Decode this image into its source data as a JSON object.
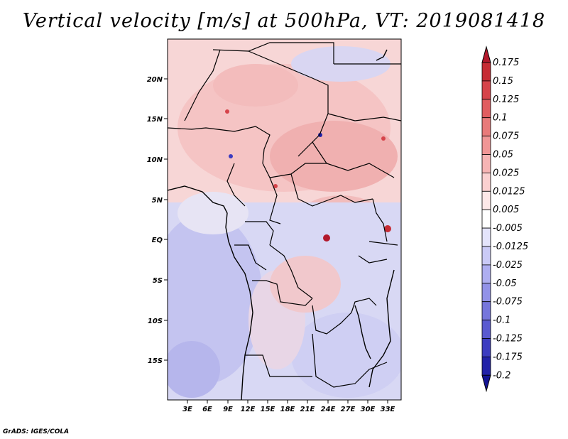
{
  "title": "Vertical velocity [m/s] at 500hPa, VT: 2019081418",
  "credit": "GrADS: IGES/COLA",
  "map": {
    "y_ticks": [
      "20N",
      "15N",
      "10N",
      "5N",
      "EQ",
      "5S",
      "10S",
      "15S"
    ],
    "x_ticks": [
      "3E",
      "6E",
      "9E",
      "12E",
      "15E",
      "18E",
      "21E",
      "24E",
      "27E",
      "30E",
      "33E"
    ]
  },
  "colorbar": {
    "labels": [
      "0.175",
      "0.15",
      "0.125",
      "0.1",
      "0.075",
      "0.05",
      "0.025",
      "0.0125",
      "0.005",
      "-0.005",
      "-0.0125",
      "-0.025",
      "-0.05",
      "-0.075",
      "-0.1",
      "-0.125",
      "-0.175",
      "-0.2"
    ],
    "colors": [
      "#b2182b",
      "#c62c34",
      "#d6434a",
      "#e05d60",
      "#e87a7a",
      "#f09696",
      "#f6b4b4",
      "#fad0d0",
      "#fde8e8",
      "#ffffff",
      "#e4e4fb",
      "#cacaf6",
      "#aeaef0",
      "#9292e8",
      "#7676dc",
      "#5a5ad0",
      "#3c3cc0",
      "#2222a8",
      "#141494"
    ]
  }
}
